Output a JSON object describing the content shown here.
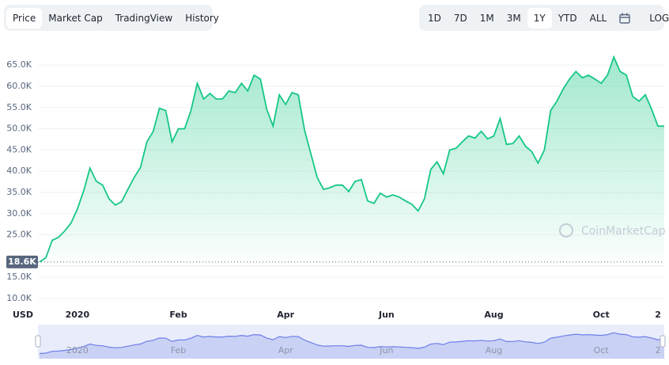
{
  "tabs": [
    "Price",
    "Market Cap",
    "TradingView",
    "History"
  ],
  "active_tab": 0,
  "ranges": [
    "1D",
    "7D",
    "1M",
    "3M",
    "1Y",
    "YTD",
    "ALL"
  ],
  "active_range": 4,
  "log_button": "LOG",
  "chart_data": {
    "type": "line",
    "color": "#16c784",
    "grid": true,
    "watermark": "CoinMarketCap",
    "currency": "USD",
    "current_price": {
      "value": 18600,
      "label": "18.6K"
    },
    "categories": [
      null,
      null,
      null,
      null,
      null,
      null,
      "2020",
      null,
      null,
      null,
      null,
      null,
      null,
      null,
      null,
      null,
      null,
      null,
      null,
      null,
      null,
      null,
      "Feb",
      null,
      null,
      null,
      null,
      null,
      null,
      null,
      null,
      null,
      null,
      null,
      null,
      null,
      null,
      null,
      null,
      "Apr",
      null,
      null,
      null,
      null,
      null,
      null,
      null,
      null,
      null,
      null,
      null,
      null,
      null,
      null,
      null,
      "Jun",
      null,
      null,
      null,
      null,
      null,
      null,
      null,
      null,
      null,
      null,
      null,
      null,
      null,
      null,
      null,
      null,
      "Aug",
      null,
      null,
      null,
      null,
      null,
      null,
      null,
      null,
      null,
      null,
      null,
      null,
      null,
      null,
      null,
      null,
      "Oct",
      null,
      null,
      null,
      null,
      null,
      null,
      null,
      null,
      "2",
      null
    ],
    "series": [
      {
        "name": "Price",
        "color": "#16c784",
        "values": [
          18600,
          19600,
          23700,
          24400,
          25900,
          27800,
          31100,
          35400,
          40700,
          37600,
          36700,
          33500,
          32000,
          32800,
          35700,
          38500,
          40900,
          46900,
          49300,
          54800,
          54300,
          46900,
          50000,
          50000,
          54300,
          60700,
          57000,
          58300,
          57000,
          57000,
          58900,
          58500,
          60700,
          58900,
          62600,
          61700,
          54600,
          50600,
          58000,
          55700,
          58500,
          58000,
          49600,
          44100,
          38500,
          35700,
          36100,
          36700,
          36700,
          35200,
          37600,
          38000,
          33000,
          32400,
          34800,
          33900,
          34400,
          33900,
          33000,
          32200,
          30600,
          33500,
          40400,
          42200,
          39400,
          45000,
          45400,
          46900,
          48300,
          47800,
          49400,
          47600,
          48300,
          52400,
          46300,
          46500,
          48300,
          45900,
          44600,
          41900,
          45000,
          54300,
          56500,
          59400,
          61700,
          63500,
          62000,
          62600,
          61700,
          60700,
          62600,
          66900,
          63500,
          62600,
          57600,
          56500,
          58000,
          54600,
          50600,
          50600
        ]
      }
    ],
    "ylim": [
      8500,
      71000
    ],
    "yticks": [
      {
        "value": 10000,
        "label": "10.0K"
      },
      {
        "value": 15000,
        "label": "15.0K"
      },
      {
        "value": 25000,
        "label": "25.0K"
      },
      {
        "value": 30000,
        "label": "30.0K"
      },
      {
        "value": 35000,
        "label": "35.0K"
      },
      {
        "value": 40000,
        "label": "40.0K"
      },
      {
        "value": 45000,
        "label": "45.0K"
      },
      {
        "value": 50000,
        "label": "50.0K"
      },
      {
        "value": 55000,
        "label": "55.0K"
      },
      {
        "value": 60000,
        "label": "60.0K"
      },
      {
        "value": 65000,
        "label": "65.0K"
      }
    ]
  }
}
